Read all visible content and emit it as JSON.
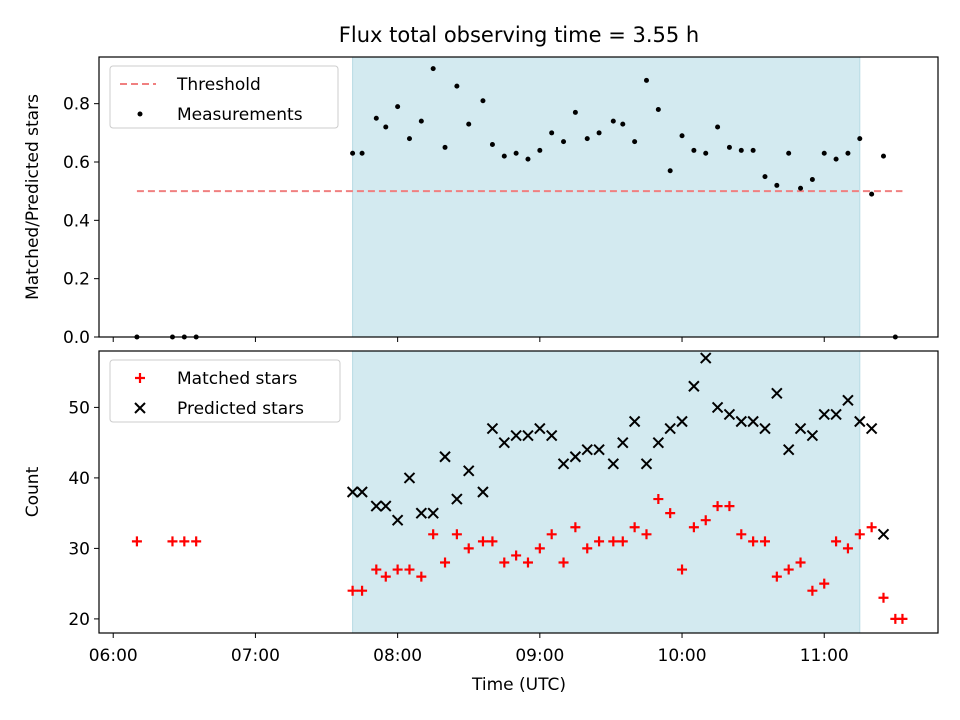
{
  "chart_data": {
    "title": "Flux total observing time = 3.55 h",
    "xlabel": "Time (UTC)",
    "x_ticks": [
      "06:00",
      "07:00",
      "08:00",
      "09:00",
      "10:00",
      "11:00"
    ],
    "highlight_span": {
      "from": "07:41",
      "to": "11:15",
      "color": "#d3eaf0"
    },
    "colors": {
      "threshold": "#f08080",
      "measurements": "#000000",
      "matched": "#ff0000",
      "predicted": "#000000"
    },
    "panels": [
      {
        "type": "scatter",
        "ylabel": "Matched/Predicted stars",
        "ylim": [
          0,
          0.96
        ],
        "y_ticks": [
          "0.0",
          "0.2",
          "0.4",
          "0.6",
          "0.8"
        ],
        "legend": [
          "Threshold",
          "Measurements"
        ],
        "threshold": {
          "name": "Threshold",
          "value": 0.5,
          "x_from": "06:10",
          "x_to": "11:33"
        },
        "series": [
          {
            "name": "Measurements",
            "marker": "dot",
            "points": [
              [
                "06:10",
                0.0
              ],
              [
                "06:25",
                0.0
              ],
              [
                "06:30",
                0.0
              ],
              [
                "06:35",
                0.0
              ],
              [
                "07:41",
                0.63
              ],
              [
                "07:45",
                0.63
              ],
              [
                "07:51",
                0.75
              ],
              [
                "07:55",
                0.72
              ],
              [
                "08:00",
                0.79
              ],
              [
                "08:05",
                0.68
              ],
              [
                "08:10",
                0.74
              ],
              [
                "08:15",
                0.92
              ],
              [
                "08:20",
                0.65
              ],
              [
                "08:25",
                0.86
              ],
              [
                "08:30",
                0.73
              ],
              [
                "08:36",
                0.81
              ],
              [
                "08:40",
                0.66
              ],
              [
                "08:45",
                0.62
              ],
              [
                "08:50",
                0.63
              ],
              [
                "08:55",
                0.61
              ],
              [
                "09:00",
                0.64
              ],
              [
                "09:05",
                0.7
              ],
              [
                "09:10",
                0.67
              ],
              [
                "09:15",
                0.77
              ],
              [
                "09:20",
                0.68
              ],
              [
                "09:25",
                0.7
              ],
              [
                "09:31",
                0.74
              ],
              [
                "09:35",
                0.73
              ],
              [
                "09:40",
                0.67
              ],
              [
                "09:45",
                0.88
              ],
              [
                "09:50",
                0.78
              ],
              [
                "09:55",
                0.57
              ],
              [
                "10:00",
                0.69
              ],
              [
                "10:05",
                0.64
              ],
              [
                "10:10",
                0.63
              ],
              [
                "10:15",
                0.72
              ],
              [
                "10:20",
                0.65
              ],
              [
                "10:25",
                0.64
              ],
              [
                "10:30",
                0.64
              ],
              [
                "10:35",
                0.55
              ],
              [
                "10:40",
                0.52
              ],
              [
                "10:45",
                0.63
              ],
              [
                "10:50",
                0.51
              ],
              [
                "10:55",
                0.54
              ],
              [
                "11:00",
                0.63
              ],
              [
                "11:05",
                0.61
              ],
              [
                "11:10",
                0.63
              ],
              [
                "11:15",
                0.68
              ],
              [
                "11:20",
                0.49
              ],
              [
                "11:25",
                0.62
              ],
              [
                "11:30",
                0.0
              ]
            ]
          }
        ]
      },
      {
        "type": "scatter",
        "ylabel": "Count",
        "ylim": [
          18,
          58
        ],
        "y_ticks": [
          "20",
          "30",
          "40",
          "50"
        ],
        "legend": [
          "Matched stars",
          "Predicted stars"
        ],
        "series": [
          {
            "name": "Matched stars",
            "marker": "plus",
            "points": [
              [
                "06:10",
                31
              ],
              [
                "06:25",
                31
              ],
              [
                "06:30",
                31
              ],
              [
                "06:35",
                31
              ],
              [
                "07:41",
                24
              ],
              [
                "07:45",
                24
              ],
              [
                "07:51",
                27
              ],
              [
                "07:55",
                26
              ],
              [
                "08:00",
                27
              ],
              [
                "08:05",
                27
              ],
              [
                "08:10",
                26
              ],
              [
                "08:15",
                32
              ],
              [
                "08:20",
                28
              ],
              [
                "08:25",
                32
              ],
              [
                "08:30",
                30
              ],
              [
                "08:36",
                31
              ],
              [
                "08:40",
                31
              ],
              [
                "08:45",
                28
              ],
              [
                "08:50",
                29
              ],
              [
                "08:55",
                28
              ],
              [
                "09:00",
                30
              ],
              [
                "09:05",
                32
              ],
              [
                "09:10",
                28
              ],
              [
                "09:15",
                33
              ],
              [
                "09:20",
                30
              ],
              [
                "09:25",
                31
              ],
              [
                "09:31",
                31
              ],
              [
                "09:35",
                31
              ],
              [
                "09:40",
                33
              ],
              [
                "09:45",
                32
              ],
              [
                "09:50",
                37
              ],
              [
                "09:55",
                35
              ],
              [
                "10:00",
                27
              ],
              [
                "10:05",
                33
              ],
              [
                "10:10",
                34
              ],
              [
                "10:15",
                36
              ],
              [
                "10:20",
                36
              ],
              [
                "10:25",
                32
              ],
              [
                "10:30",
                31
              ],
              [
                "10:35",
                31
              ],
              [
                "10:40",
                26
              ],
              [
                "10:45",
                27
              ],
              [
                "10:50",
                28
              ],
              [
                "10:55",
                24
              ],
              [
                "11:00",
                25
              ],
              [
                "11:05",
                31
              ],
              [
                "11:10",
                30
              ],
              [
                "11:15",
                32
              ],
              [
                "11:20",
                33
              ],
              [
                "11:25",
                23
              ],
              [
                "11:30",
                20
              ],
              [
                "11:33",
                20
              ]
            ]
          },
          {
            "name": "Predicted stars",
            "marker": "x",
            "points": [
              [
                "07:41",
                38
              ],
              [
                "07:45",
                38
              ],
              [
                "07:51",
                36
              ],
              [
                "07:55",
                36
              ],
              [
                "08:00",
                34
              ],
              [
                "08:05",
                40
              ],
              [
                "08:10",
                35
              ],
              [
                "08:15",
                35
              ],
              [
                "08:20",
                43
              ],
              [
                "08:25",
                37
              ],
              [
                "08:30",
                41
              ],
              [
                "08:36",
                38
              ],
              [
                "08:40",
                47
              ],
              [
                "08:45",
                45
              ],
              [
                "08:50",
                46
              ],
              [
                "08:55",
                46
              ],
              [
                "09:00",
                47
              ],
              [
                "09:05",
                46
              ],
              [
                "09:10",
                42
              ],
              [
                "09:15",
                43
              ],
              [
                "09:20",
                44
              ],
              [
                "09:25",
                44
              ],
              [
                "09:31",
                42
              ],
              [
                "09:35",
                45
              ],
              [
                "09:40",
                48
              ],
              [
                "09:45",
                42
              ],
              [
                "09:50",
                45
              ],
              [
                "09:55",
                47
              ],
              [
                "10:00",
                48
              ],
              [
                "10:05",
                53
              ],
              [
                "10:10",
                57
              ],
              [
                "10:15",
                50
              ],
              [
                "10:20",
                49
              ],
              [
                "10:25",
                48
              ],
              [
                "10:30",
                48
              ],
              [
                "10:35",
                47
              ],
              [
                "10:40",
                52
              ],
              [
                "10:45",
                44
              ],
              [
                "10:50",
                47
              ],
              [
                "10:55",
                46
              ],
              [
                "11:00",
                49
              ],
              [
                "11:05",
                49
              ],
              [
                "11:10",
                51
              ],
              [
                "11:15",
                48
              ],
              [
                "11:20",
                47
              ],
              [
                "11:25",
                32
              ]
            ]
          }
        ]
      }
    ]
  }
}
